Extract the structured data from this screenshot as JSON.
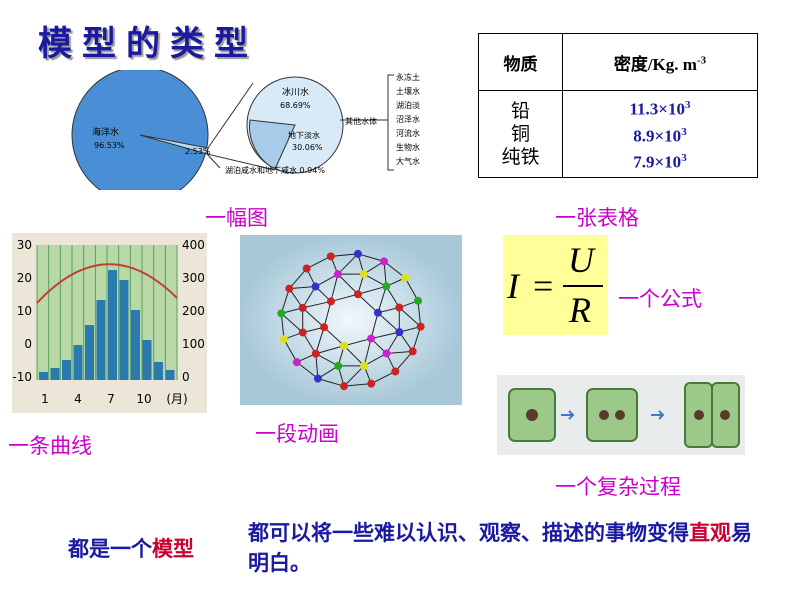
{
  "title": "模型的类型",
  "pie": {
    "ocean": "海洋水",
    "ocean_pct": "96.53%",
    "other_pct": "2.53%",
    "salt": "湖泊咸水和地下咸水 0.94%",
    "glacier": "冰川水",
    "glacier_pct": "68.69%",
    "ground": "地下淡水",
    "ground_pct": "30.06%",
    "others": "其他水体",
    "list": [
      "永冻土",
      "土壤水",
      "湖泊淡",
      "沼泽水",
      "河流水",
      "生物水",
      "大气水"
    ],
    "caption": "一幅图"
  },
  "table": {
    "header": [
      "物质",
      {
        "text": "密度/Kg.  m",
        "sup": "-3"
      }
    ],
    "names": [
      "铅",
      "铜",
      "纯铁"
    ],
    "densities": [
      {
        "text": "11.3×10",
        "sup": "3"
      },
      {
        "text": "8.9×10",
        "sup": "3"
      },
      {
        "text": "7.9×10",
        "sup": "3"
      }
    ],
    "caption": "一张表格"
  },
  "curve": {
    "left_ticks": [
      "30",
      "20",
      "10",
      "0",
      "-10"
    ],
    "right_ticks": [
      "400",
      "300",
      "200",
      "100",
      "0"
    ],
    "x_ticks": [
      "1",
      "4",
      "7",
      "10",
      "(月)"
    ],
    "caption": "一条曲线"
  },
  "animation": {
    "caption": "一段动画"
  },
  "formula": {
    "lhs": "I",
    "eq": "=",
    "num": "U",
    "den": "R",
    "caption": "一个公式"
  },
  "process": {
    "caption": "一个复杂过程"
  },
  "summary": {
    "label": [
      "都是一个",
      "模型"
    ],
    "text": [
      "都可以将一些难以认识、观察、描述的事物变得",
      "直观",
      "易明白。"
    ]
  }
}
